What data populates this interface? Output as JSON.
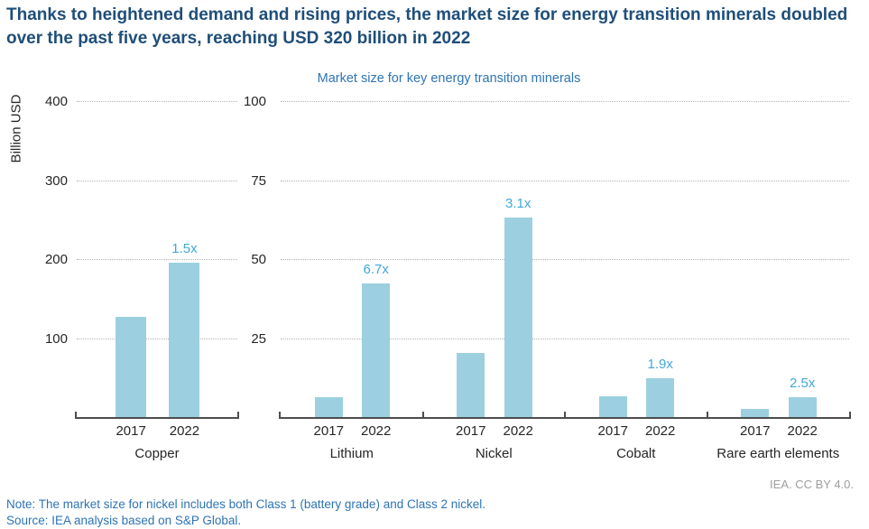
{
  "title": "Thanks to heightened demand and rising prices, the market size for energy transition minerals doubled over the past five years, reaching USD 320 billion in 2022",
  "subtitle": "Market size for key energy transition minerals",
  "ylabel": "Billion USD",
  "attribution": "IEA. CC BY 4.0.",
  "note": "Note: The market size for nickel includes both Class 1 (battery grade) and Class 2 nickel.",
  "source": "Source: IEA analysis based on S&P Global.",
  "colors": {
    "title": "#1f4e79",
    "subtitle": "#2e74b5",
    "note": "#2e74b5",
    "attribution": "#9d9d9d",
    "bar": "#9cd0e0",
    "multiplier": "#41a8dc",
    "grid": "#b3b3b3",
    "axis": "#4d4d4d"
  },
  "chart_data": {
    "type": "bar",
    "title": "Market size for key energy transition minerals",
    "ylabel": "Billion USD",
    "grid": "dotted horizontal",
    "legend": "none",
    "panels": [
      {
        "name": "copper",
        "ylim": [
          0,
          400
        ],
        "yticks": [
          100,
          200,
          300,
          400
        ],
        "groups": [
          {
            "label": "Copper",
            "years": [
              "2017",
              "2022"
            ],
            "values": [
              127,
              195
            ],
            "multiplier": "1.5x"
          }
        ]
      },
      {
        "name": "other-minerals",
        "ylim": [
          0,
          100
        ],
        "yticks": [
          25,
          50,
          75,
          100
        ],
        "groups": [
          {
            "label": "Lithium",
            "years": [
              "2017",
              "2022"
            ],
            "values": [
              6.3,
              42.3
            ],
            "multiplier": "6.7x"
          },
          {
            "label": "Nickel",
            "years": [
              "2017",
              "2022"
            ],
            "values": [
              20.3,
              63.2
            ],
            "multiplier": "3.1x"
          },
          {
            "label": "Cobalt",
            "years": [
              "2017",
              "2022"
            ],
            "values": [
              6.7,
              12.4
            ],
            "multiplier": "1.9x"
          },
          {
            "label": "Rare earth elements",
            "years": [
              "2017",
              "2022"
            ],
            "values": [
              2.5,
              6.4
            ],
            "multiplier": "2.5x"
          }
        ]
      }
    ]
  }
}
